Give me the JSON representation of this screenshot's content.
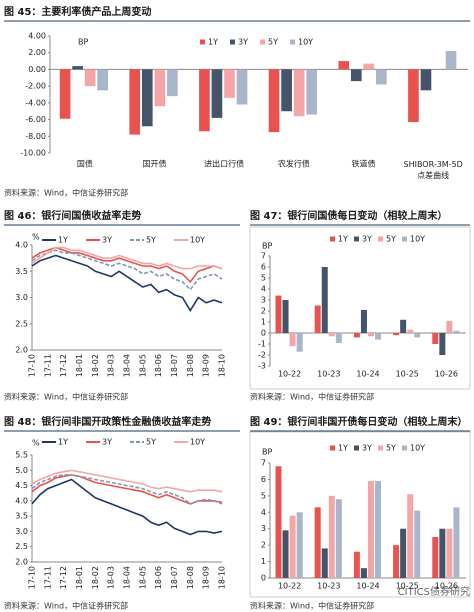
{
  "chart_data": [
    {
      "type": "bar",
      "title": "图 45：主要利率债产品上周变动",
      "y_label": "BP",
      "categories": [
        "国债",
        "国开债",
        "进出口行债",
        "农发行债",
        "铁道债",
        "SHIBOR-3M-5D 点差曲线"
      ],
      "series": [
        {
          "name": "1Y",
          "color": "#e8534f",
          "values": [
            -5.9,
            -7.8,
            -7.4,
            -7.5,
            1.0,
            -6.3
          ]
        },
        {
          "name": "3Y",
          "color": "#44546a",
          "values": [
            0.4,
            -6.8,
            -5.8,
            -5.0,
            -1.4,
            -2.5
          ]
        },
        {
          "name": "5Y",
          "color": "#f4a6a6",
          "values": [
            -2.0,
            -4.4,
            -3.4,
            -5.6,
            0.7,
            0
          ]
        },
        {
          "name": "10Y",
          "color": "#a9b6c9",
          "values": [
            -2.5,
            -3.2,
            -4.2,
            -5.4,
            -1.8,
            2.2
          ]
        }
      ],
      "ylim": [
        -10,
        4
      ],
      "yticks": [
        {
          "value": 4,
          "label": "4.00"
        },
        {
          "value": 2,
          "label": "2.00"
        },
        {
          "value": 0,
          "label": "0.00"
        },
        {
          "value": -2,
          "label": "-2.00"
        },
        {
          "value": -4,
          "label": "-4.00"
        },
        {
          "value": -6,
          "label": "-6.00"
        },
        {
          "value": -8,
          "label": "-8.00"
        },
        {
          "value": -10,
          "label": "-10.00"
        }
      ],
      "source": "资料来源：Wind，中信证券研究部"
    },
    {
      "type": "line",
      "title": "图 46：银行间国债收益率走势",
      "y_label": "%",
      "categories": [
        "17-10",
        null,
        "17-11",
        null,
        "17-12",
        null,
        "18-01",
        null,
        "18-02",
        null,
        "18-03",
        null,
        "18-04",
        null,
        "18-05",
        null,
        "18-06",
        null,
        "18-07",
        null,
        "18-08",
        null,
        "18-09",
        null,
        "18-10"
      ],
      "series": [
        {
          "name": "1Y",
          "color": "#1f3864",
          "values": [
            3.6,
            3.7,
            3.75,
            3.8,
            3.75,
            3.7,
            3.65,
            3.6,
            3.5,
            3.45,
            3.4,
            3.5,
            3.4,
            3.3,
            3.2,
            3.25,
            3.1,
            3.15,
            3.05,
            3.0,
            2.75,
            3.0,
            2.9,
            2.95,
            2.9
          ]
        },
        {
          "name": "3Y",
          "color": "#e8534f",
          "values": [
            3.75,
            3.85,
            3.9,
            3.95,
            3.9,
            3.85,
            3.85,
            3.8,
            3.75,
            3.7,
            3.7,
            3.75,
            3.7,
            3.65,
            3.6,
            3.6,
            3.55,
            3.6,
            3.5,
            3.45,
            3.3,
            3.5,
            3.55,
            3.6,
            3.55
          ]
        },
        {
          "name": "5Y",
          "color": "#8497b0",
          "dashed": true,
          "values": [
            3.7,
            3.8,
            3.85,
            3.9,
            3.85,
            3.85,
            3.8,
            3.75,
            3.7,
            3.65,
            3.6,
            3.65,
            3.6,
            3.55,
            3.45,
            3.5,
            3.4,
            3.45,
            3.35,
            3.3,
            3.15,
            3.35,
            3.4,
            3.45,
            3.35
          ]
        },
        {
          "name": "10Y",
          "color": "#f4a6a6",
          "values": [
            3.65,
            3.75,
            3.85,
            3.95,
            3.95,
            3.9,
            3.9,
            3.85,
            3.8,
            3.75,
            3.75,
            3.8,
            3.75,
            3.7,
            3.65,
            3.65,
            3.6,
            3.65,
            3.6,
            3.55,
            3.55,
            3.6,
            3.6,
            3.6,
            3.55
          ]
        }
      ],
      "ylim": [
        2,
        4
      ],
      "yticks": [
        {
          "value": 2,
          "label": "2.0"
        },
        2.5,
        {
          "value": 3,
          "label": "3.0"
        },
        3.5,
        {
          "value": 4,
          "label": "4.0"
        }
      ],
      "source": "资料来源：Wind，中信证券研究部"
    },
    {
      "type": "bar",
      "title": "图 47：银行间国债每日变动（相较上周末）",
      "y_label": "BP",
      "categories": [
        "10-22",
        "10-23",
        "10-24",
        "10-25",
        "10-26"
      ],
      "series": [
        {
          "name": "1Y",
          "color": "#e8534f",
          "values": [
            3.4,
            2.5,
            -0.4,
            -0.2,
            -1.0
          ]
        },
        {
          "name": "3Y",
          "color": "#44546a",
          "values": [
            3.0,
            6.0,
            2.1,
            1.2,
            -2.0
          ]
        },
        {
          "name": "5Y",
          "color": "#f4a6a6",
          "values": [
            -1.2,
            -0.3,
            -0.3,
            0.3,
            1.1
          ]
        },
        {
          "name": "10Y",
          "color": "#a9b6c9",
          "values": [
            -1.7,
            -0.9,
            -0.6,
            -0.4,
            0.2
          ]
        }
      ],
      "ylim": [
        -3,
        7
      ],
      "yticks": [
        -3,
        -2,
        -1,
        0,
        1,
        2,
        3,
        4,
        5,
        6,
        7
      ],
      "source": "资料来源：Wind，中信证券研究部"
    },
    {
      "type": "line",
      "title": "图 48：银行间非国开政策性金融债收益率走势",
      "y_label": "%",
      "categories": [
        "17-10",
        null,
        "17-11",
        null,
        "17-12",
        null,
        "18-01",
        null,
        "18-02",
        null,
        "18-03",
        null,
        "18-04",
        null,
        "18-05",
        null,
        "18-06",
        null,
        "18-07",
        null,
        "18-08",
        null,
        "18-09",
        null,
        "18-10"
      ],
      "series": [
        {
          "name": "1Y",
          "color": "#1f3864",
          "values": [
            3.9,
            4.2,
            4.4,
            4.5,
            4.6,
            4.7,
            4.5,
            4.3,
            4.1,
            4.0,
            3.9,
            3.8,
            3.7,
            3.6,
            3.5,
            3.3,
            3.2,
            3.3,
            3.1,
            3.0,
            2.9,
            3.0,
            3.0,
            2.95,
            3.0
          ]
        },
        {
          "name": "3Y",
          "color": "#e8534f",
          "values": [
            4.3,
            4.5,
            4.6,
            4.75,
            4.8,
            4.85,
            4.8,
            4.7,
            4.6,
            4.55,
            4.5,
            4.45,
            4.4,
            4.35,
            4.3,
            4.2,
            4.1,
            4.2,
            4.1,
            4.0,
            3.9,
            4.0,
            4.0,
            4.0,
            3.95
          ]
        },
        {
          "name": "5Y",
          "color": "#8497b0",
          "dashed": true,
          "values": [
            4.4,
            4.6,
            4.7,
            4.8,
            4.85,
            4.85,
            4.8,
            4.75,
            4.7,
            4.65,
            4.6,
            4.55,
            4.5,
            4.45,
            4.4,
            4.3,
            4.2,
            4.3,
            4.2,
            4.1,
            3.9,
            4.0,
            4.05,
            4.0,
            3.9
          ]
        },
        {
          "name": "10Y",
          "color": "#f4a6a6",
          "values": [
            4.55,
            4.7,
            4.8,
            4.9,
            4.95,
            5.0,
            4.95,
            4.9,
            4.85,
            4.8,
            4.75,
            4.7,
            4.65,
            4.6,
            4.55,
            4.45,
            4.4,
            4.45,
            4.4,
            4.35,
            4.3,
            4.35,
            4.35,
            4.35,
            4.3
          ]
        }
      ],
      "ylim": [
        2,
        5.5
      ],
      "yticks": [
        {
          "value": 2,
          "label": "2.0"
        },
        2.5,
        {
          "value": 3,
          "label": "3.0"
        },
        3.5,
        {
          "value": 4,
          "label": "4.0"
        },
        4.5,
        {
          "value": 5,
          "label": "5.0"
        },
        5.5
      ],
      "source": "资料来源：Wind，中信证券研究部"
    },
    {
      "type": "bar",
      "title": "图 49：银行间非国开债每日变动（相较上周末）",
      "y_label": "BP",
      "categories": [
        "10-22",
        "10-23",
        "10-24",
        "10-25",
        "10-26"
      ],
      "series": [
        {
          "name": "1Y",
          "color": "#e8534f",
          "values": [
            6.8,
            4.3,
            1.6,
            2.0,
            2.5
          ]
        },
        {
          "name": "3Y",
          "color": "#44546a",
          "values": [
            2.9,
            1.8,
            0.6,
            3.0,
            3.0
          ]
        },
        {
          "name": "5Y",
          "color": "#f4a6a6",
          "values": [
            3.8,
            5.0,
            5.9,
            5.1,
            3.0
          ]
        },
        {
          "name": "10Y",
          "color": "#a9b6c9",
          "values": [
            4.0,
            4.8,
            5.9,
            4.1,
            4.3
          ]
        }
      ],
      "ylim": [
        0,
        7
      ],
      "yticks": [
        0,
        1,
        2,
        3,
        4,
        5,
        6,
        7
      ],
      "source": "资料来源：Wind，中信证券研究部"
    }
  ],
  "watermark": "CITICS债券研究"
}
